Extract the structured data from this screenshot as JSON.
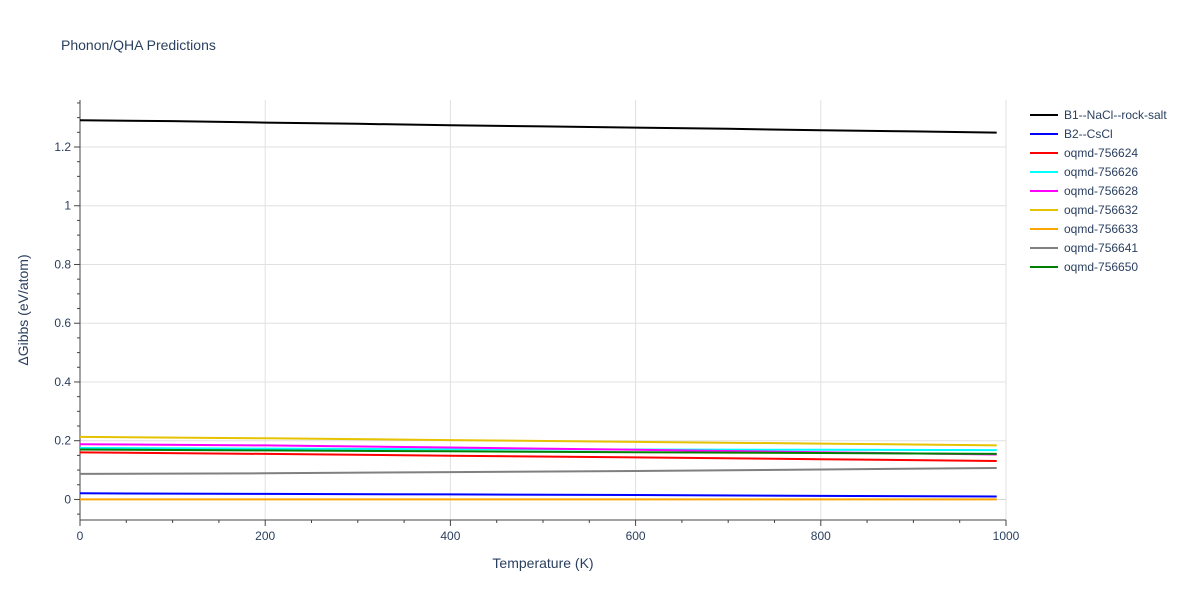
{
  "chart_data": {
    "type": "line",
    "title": "Phonon/QHA Predictions",
    "xlabel": "Temperature (K)",
    "ylabel": "ΔGibbs (eV/atom)",
    "xlim": [
      0,
      1000
    ],
    "ylim": [
      -0.07,
      1.36
    ],
    "xticks": [
      0,
      200,
      400,
      600,
      800,
      1000
    ],
    "yticks": [
      0,
      0.2,
      0.4,
      0.6,
      0.8,
      1,
      1.2
    ],
    "xtick_labels": [
      "0",
      "200",
      "400",
      "600",
      "800",
      "1000"
    ],
    "ytick_labels": [
      "0",
      "0.2",
      "0.4",
      "0.6",
      "0.8",
      "1",
      "1.2"
    ],
    "grid": true,
    "legend_position": "right",
    "series": [
      {
        "name": "B1--NaCl--rock-salt",
        "color": "#000000",
        "x": [
          0,
          100,
          200,
          300,
          400,
          500,
          600,
          700,
          800,
          900,
          990
        ],
        "y": [
          1.291,
          1.288,
          1.283,
          1.279,
          1.274,
          1.27,
          1.266,
          1.262,
          1.257,
          1.253,
          1.249
        ]
      },
      {
        "name": "B2--CsCl",
        "color": "#0000ff",
        "x": [
          0,
          200,
          400,
          600,
          800,
          990
        ],
        "y": [
          0.021,
          0.019,
          0.017,
          0.015,
          0.012,
          0.01
        ]
      },
      {
        "name": "oqmd-756624",
        "color": "#ff0000",
        "x": [
          0,
          200,
          400,
          600,
          800,
          990
        ],
        "y": [
          0.16,
          0.155,
          0.149,
          0.143,
          0.137,
          0.131
        ]
      },
      {
        "name": "oqmd-756626",
        "color": "#00ffff",
        "x": [
          0,
          200,
          400,
          600,
          800,
          990
        ],
        "y": [
          0.175,
          0.173,
          0.171,
          0.17,
          0.169,
          0.168
        ]
      },
      {
        "name": "oqmd-756628",
        "color": "#ff00ff",
        "x": [
          0,
          200,
          400,
          600,
          800,
          990
        ],
        "y": [
          0.188,
          0.184,
          0.177,
          0.169,
          0.161,
          0.153
        ]
      },
      {
        "name": "oqmd-756632",
        "color": "#e6c200",
        "x": [
          0,
          200,
          400,
          600,
          800,
          990
        ],
        "y": [
          0.213,
          0.208,
          0.202,
          0.196,
          0.19,
          0.184
        ]
      },
      {
        "name": "oqmd-756633",
        "color": "#ffa500",
        "x": [
          0,
          200,
          400,
          600,
          800,
          990
        ],
        "y": [
          0.0,
          0.0,
          0.0,
          0.0,
          0.0,
          0.0
        ]
      },
      {
        "name": "oqmd-756641",
        "color": "#808080",
        "x": [
          0,
          200,
          400,
          600,
          800,
          990
        ],
        "y": [
          0.087,
          0.089,
          0.093,
          0.097,
          0.102,
          0.107
        ]
      },
      {
        "name": "oqmd-756650",
        "color": "#008000",
        "x": [
          0,
          200,
          400,
          600,
          800,
          990
        ],
        "y": [
          0.17,
          0.167,
          0.164,
          0.161,
          0.158,
          0.155
        ]
      }
    ]
  }
}
